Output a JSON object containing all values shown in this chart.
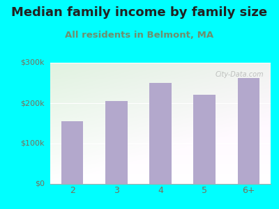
{
  "title": "Median family income by family size",
  "subtitle": "All residents in Belmont, MA",
  "categories": [
    "2",
    "3",
    "4",
    "5",
    "6+"
  ],
  "values": [
    155000,
    205000,
    250000,
    220000,
    262000
  ],
  "bar_color": "#b3a8cc",
  "title_color": "#222222",
  "subtitle_color": "#6e8f6e",
  "background_outer": "#00ffff",
  "ylim": [
    0,
    300000
  ],
  "yticks": [
    0,
    100000,
    200000,
    300000
  ],
  "ytick_labels": [
    "$0",
    "$100k",
    "$200k",
    "$300k"
  ],
  "watermark": "City-Data.com",
  "title_fontsize": 13,
  "subtitle_fontsize": 9.5,
  "tick_label_color": "#7a6e5a"
}
